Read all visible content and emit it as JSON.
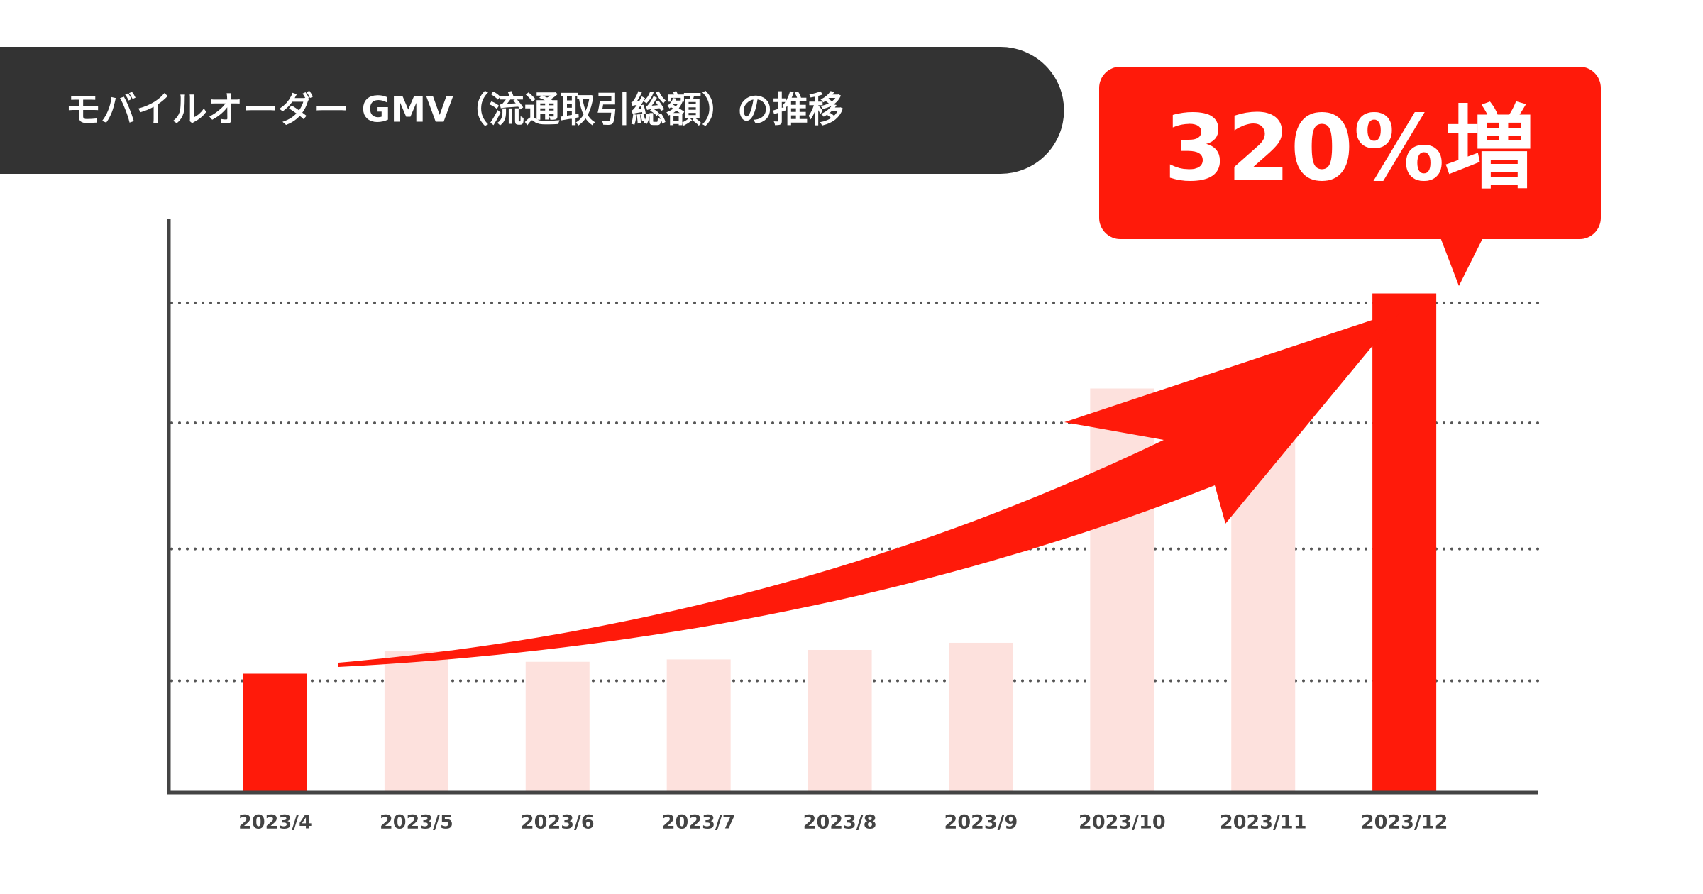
{
  "chart_data": {
    "type": "bar",
    "title": "モバイルオーダー GMV（流通取引総額）の推移",
    "callout": "320%増",
    "categories": [
      "2023/4",
      "2023/5",
      "2023/6",
      "2023/7",
      "2023/8",
      "2023/9",
      "2023/10",
      "2023/11",
      "2023/12"
    ],
    "values": [
      100,
      119,
      110,
      112,
      120,
      126,
      340,
      350,
      420
    ],
    "colors": [
      "#ff1a0a",
      "#fde1dd",
      "#fde1dd",
      "#fde1dd",
      "#fde1dd",
      "#fde1dd",
      "#fde1dd",
      "#fde1dd",
      "#ff1a0a"
    ],
    "ylim": [
      0,
      483
    ],
    "yticks": [
      94,
      205,
      311,
      412
    ],
    "grid": true
  }
}
